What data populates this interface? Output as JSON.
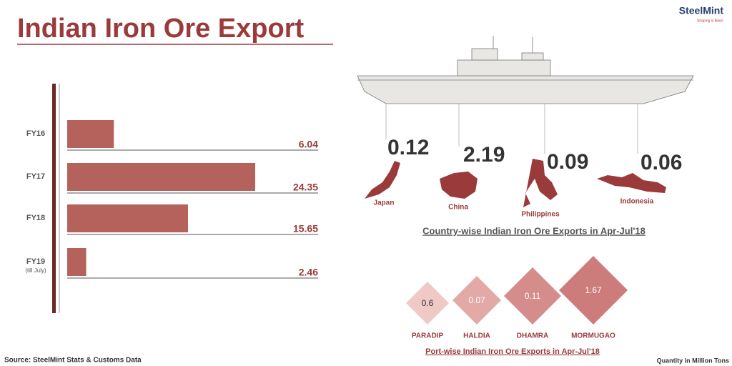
{
  "title": "Indian Iron Ore Export",
  "logo": {
    "name": "SteelMint",
    "tagline": "Shaping is Basic"
  },
  "chart_data": [
    {
      "type": "bar",
      "orientation": "horizontal",
      "categories": [
        "FY16",
        "FY17",
        "FY18",
        "FY19"
      ],
      "category_notes": [
        null,
        null,
        null,
        "(till July)"
      ],
      "values": [
        6.04,
        24.35,
        15.65,
        2.46
      ],
      "color": "#b5615c"
    },
    {
      "type": "callout",
      "title": "Country-wise Indian Iron Ore Exports in Apr-Jul'18",
      "categories": [
        "Japan",
        "China",
        "Philippines",
        "Indonesia"
      ],
      "values": [
        0.12,
        2.19,
        0.09,
        0.06
      ]
    },
    {
      "type": "diamond",
      "title": "Port-wise Indian Iron Ore Exports in Apr-Jul'18",
      "categories": [
        "PARADIP",
        "HALDIA",
        "DHAMRA",
        "MORMUGAO"
      ],
      "values": [
        0.6,
        0.07,
        0.11,
        1.67
      ],
      "colors": [
        "#f0c9c6",
        "#e2a9a7",
        "#d48d8b",
        "#cc7c7b"
      ]
    }
  ],
  "source": "Source: SteelMint Stats & Customs Data",
  "unit_note": "Quantity in Million Tons"
}
